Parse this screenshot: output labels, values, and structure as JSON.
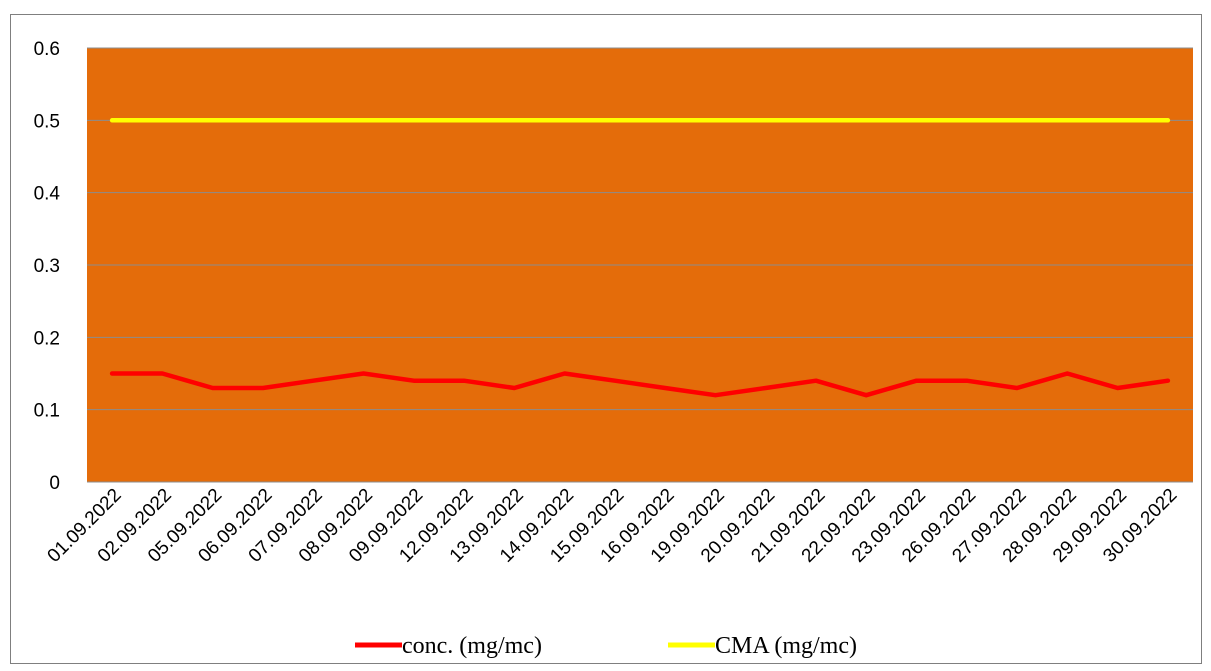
{
  "header_fragment": "",
  "chart_data": {
    "type": "line",
    "title": "",
    "xlabel": "",
    "ylabel": "",
    "ylim": [
      0,
      0.6
    ],
    "yticks": [
      "0",
      "0.1",
      "0.2",
      "0.3",
      "0.4",
      "0.5",
      "0.6"
    ],
    "grid": true,
    "legend_position": "bottom",
    "plot_background": "#E46C0A",
    "categories": [
      "01.09.2022",
      "02.09.2022",
      "05.09.2022",
      "06.09.2022",
      "07.09.2022",
      "08.09.2022",
      "09.09.2022",
      "12.09.2022",
      "13.09.2022",
      "14.09.2022",
      "15.09.2022",
      "16.09.2022",
      "19.09.2022",
      "20.09.2022",
      "21.09.2022",
      "22.09.2022",
      "23.09.2022",
      "26.09.2022",
      "27.09.2022",
      "28.09.2022",
      "29.09.2022",
      "30.09.2022"
    ],
    "series": [
      {
        "name": "conc. (mg/mc)",
        "color": "#FF0000",
        "values": [
          0.15,
          0.15,
          0.13,
          0.13,
          0.14,
          0.15,
          0.14,
          0.14,
          0.13,
          0.15,
          0.14,
          0.13,
          0.12,
          0.13,
          0.14,
          0.12,
          0.14,
          0.14,
          0.13,
          0.15,
          0.13,
          0.14
        ]
      },
      {
        "name": "CMA (mg/mc)",
        "color": "#FFFF00",
        "values": [
          0.5,
          0.5,
          0.5,
          0.5,
          0.5,
          0.5,
          0.5,
          0.5,
          0.5,
          0.5,
          0.5,
          0.5,
          0.5,
          0.5,
          0.5,
          0.5,
          0.5,
          0.5,
          0.5,
          0.5,
          0.5,
          0.5
        ]
      }
    ]
  }
}
